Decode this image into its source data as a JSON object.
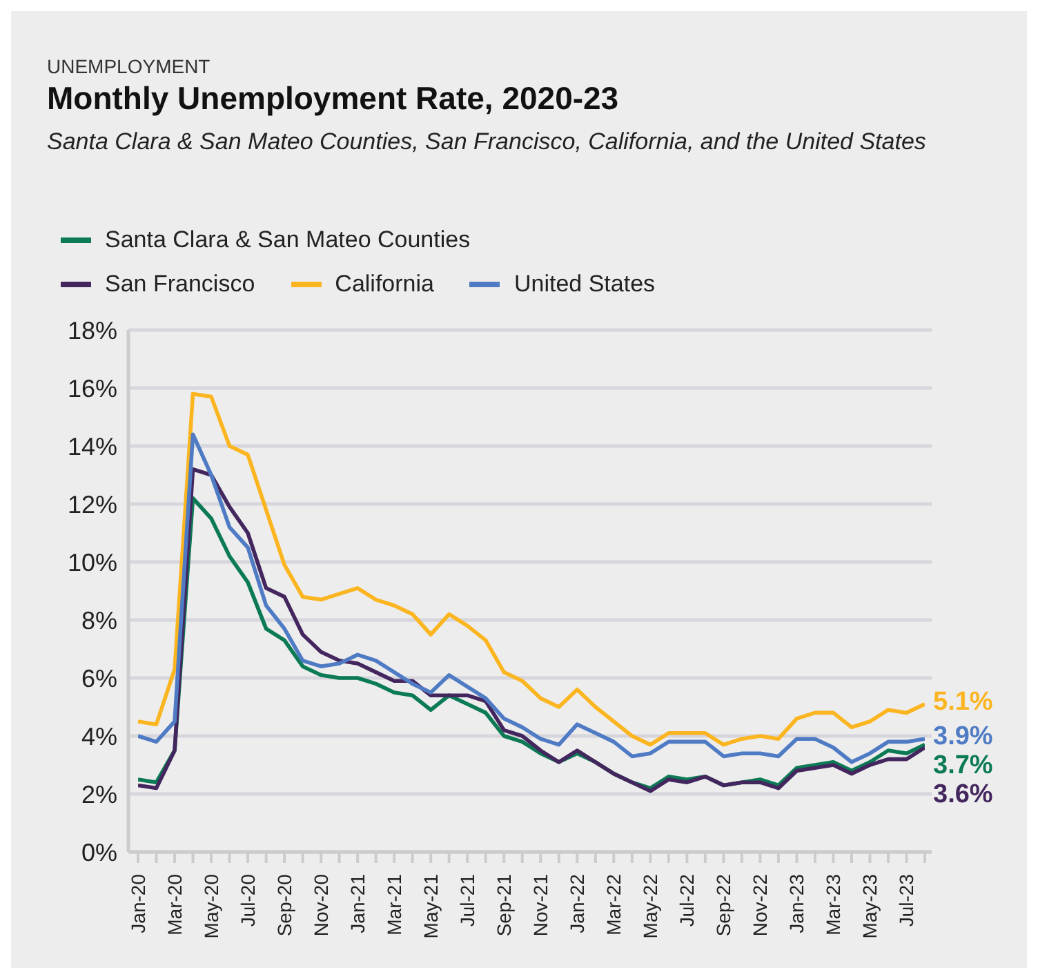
{
  "chart_data": {
    "type": "line",
    "title": "Monthly Unemployment Rate, 2020-23",
    "subtitle": "Santa Clara & San Mateo Counties, San Francisco, California, and the United States",
    "annotations": [
      "UNEMPLOYMENT"
    ],
    "categories": [
      "Jan-20",
      null,
      "Mar-20",
      null,
      "May-20",
      null,
      "Jul-20",
      null,
      "Sep-20",
      null,
      "Nov-20",
      null,
      "Jan-21",
      null,
      "Mar-21",
      null,
      "May-21",
      null,
      "Jul-21",
      null,
      "Sep-21",
      null,
      "Nov-21",
      null,
      "Jan-22",
      null,
      "Mar-22",
      null,
      "May-22",
      null,
      "Jul-22",
      null,
      "Sep-22",
      null,
      "Nov-22",
      null,
      "Jan-23",
      null,
      "Mar-23",
      null,
      "May-23",
      null,
      "Jul-23",
      null
    ],
    "series": [
      {
        "name": "Santa Clara & San Mateo Counties",
        "color": "#0b7a55",
        "values": [
          2.5,
          2.4,
          3.5,
          12.2,
          11.5,
          10.2,
          9.3,
          7.7,
          7.3,
          6.4,
          6.1,
          6.0,
          6.0,
          5.8,
          5.5,
          5.4,
          4.9,
          5.4,
          5.1,
          4.8,
          4.0,
          3.8,
          3.4,
          3.1,
          3.4,
          3.1,
          2.7,
          2.4,
          2.2,
          2.6,
          2.5,
          2.6,
          2.3,
          2.4,
          2.5,
          2.3,
          2.9,
          3.0,
          3.1,
          2.8,
          3.1,
          3.5,
          3.4,
          3.7
        ],
        "value_labels": [
          null,
          null,
          null,
          null,
          null,
          null,
          null,
          null,
          null,
          null,
          null,
          null,
          null,
          null,
          null,
          null,
          null,
          null,
          null,
          null,
          null,
          null,
          null,
          null,
          null,
          null,
          null,
          null,
          null,
          null,
          null,
          null,
          null,
          null,
          null,
          null,
          null,
          null,
          null,
          null,
          null,
          null,
          null,
          "3.7%"
        ]
      },
      {
        "name": "San Francisco",
        "color": "#44265e",
        "values": [
          2.3,
          2.2,
          3.5,
          13.2,
          13.0,
          11.9,
          11.0,
          9.1,
          8.8,
          7.5,
          6.9,
          6.6,
          6.5,
          6.2,
          5.9,
          5.9,
          5.4,
          5.4,
          5.4,
          5.2,
          4.2,
          4.0,
          3.5,
          3.1,
          3.5,
          3.1,
          2.7,
          2.4,
          2.1,
          2.5,
          2.4,
          2.6,
          2.3,
          2.4,
          2.4,
          2.2,
          2.8,
          2.9,
          3.0,
          2.7,
          3.0,
          3.2,
          3.2,
          3.6
        ],
        "value_labels": [
          null,
          null,
          null,
          null,
          null,
          null,
          null,
          null,
          null,
          null,
          null,
          null,
          null,
          null,
          null,
          null,
          null,
          null,
          null,
          null,
          null,
          null,
          null,
          null,
          null,
          null,
          null,
          null,
          null,
          null,
          null,
          null,
          null,
          null,
          null,
          null,
          null,
          null,
          null,
          null,
          null,
          null,
          null,
          "3.6%"
        ]
      },
      {
        "name": "California",
        "color": "#fbb520",
        "values": [
          4.5,
          4.4,
          6.3,
          15.8,
          15.7,
          14.0,
          13.7,
          11.8,
          9.9,
          8.8,
          8.7,
          8.9,
          9.1,
          8.7,
          8.5,
          8.2,
          7.5,
          8.2,
          7.8,
          7.3,
          6.2,
          5.9,
          5.3,
          5.0,
          5.6,
          5.0,
          4.5,
          4.0,
          3.7,
          4.1,
          4.1,
          4.1,
          3.7,
          3.9,
          4.0,
          3.9,
          4.6,
          4.8,
          4.8,
          4.3,
          4.5,
          4.9,
          4.8,
          5.1
        ],
        "value_labels": [
          null,
          null,
          null,
          null,
          null,
          null,
          null,
          null,
          null,
          null,
          null,
          null,
          null,
          null,
          null,
          null,
          null,
          null,
          null,
          null,
          null,
          null,
          null,
          null,
          null,
          null,
          null,
          null,
          null,
          null,
          null,
          null,
          null,
          null,
          null,
          null,
          null,
          null,
          null,
          null,
          null,
          null,
          null,
          "5.1%"
        ]
      },
      {
        "name": "United States",
        "color": "#4f7bc4",
        "values": [
          4.0,
          3.8,
          4.5,
          14.4,
          13.0,
          11.2,
          10.5,
          8.5,
          7.7,
          6.6,
          6.4,
          6.5,
          6.8,
          6.6,
          6.2,
          5.8,
          5.5,
          6.1,
          5.7,
          5.3,
          4.6,
          4.3,
          3.9,
          3.7,
          4.4,
          4.1,
          3.8,
          3.3,
          3.4,
          3.8,
          3.8,
          3.8,
          3.3,
          3.4,
          3.4,
          3.3,
          3.9,
          3.9,
          3.6,
          3.1,
          3.4,
          3.8,
          3.8,
          3.9
        ],
        "value_labels": [
          null,
          null,
          null,
          null,
          null,
          null,
          null,
          null,
          null,
          null,
          null,
          null,
          null,
          null,
          null,
          null,
          null,
          null,
          null,
          null,
          null,
          null,
          null,
          null,
          null,
          null,
          null,
          null,
          null,
          null,
          null,
          null,
          null,
          null,
          null,
          null,
          null,
          null,
          null,
          null,
          null,
          null,
          null,
          "3.9%"
        ]
      }
    ],
    "ylim": [
      0,
      18
    ],
    "yticks": [
      {
        "value": 0,
        "label": "0%"
      },
      {
        "value": 2,
        "label": "2%"
      },
      {
        "value": 4,
        "label": "4%"
      },
      {
        "value": 6,
        "label": "6%"
      },
      {
        "value": 8,
        "label": "8%"
      },
      {
        "value": 10,
        "label": "10%"
      },
      {
        "value": 12,
        "label": "12%"
      },
      {
        "value": 14,
        "label": "14%"
      },
      {
        "value": 16,
        "label": "16%"
      },
      {
        "value": 18,
        "label": "18%"
      }
    ],
    "grid": "y",
    "legend": "top",
    "marker": "none",
    "line_style": "solid"
  }
}
